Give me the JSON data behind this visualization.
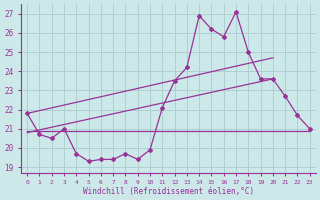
{
  "xlabel": "Windchill (Refroidissement éolien,°C)",
  "xlim": [
    -0.5,
    23.5
  ],
  "ylim": [
    18.7,
    27.5
  ],
  "yticks": [
    19,
    20,
    21,
    22,
    23,
    24,
    25,
    26,
    27
  ],
  "xticks": [
    0,
    1,
    2,
    3,
    4,
    5,
    6,
    7,
    8,
    9,
    10,
    11,
    12,
    13,
    14,
    15,
    16,
    17,
    18,
    19,
    20,
    21,
    22,
    23
  ],
  "background_color": "#cce8e8",
  "grid_color": "#aacccc",
  "line_color": "#993399",
  "data_main": {
    "x": [
      0,
      1,
      2,
      3,
      4,
      5,
      6,
      7,
      8,
      9,
      10,
      11,
      12,
      13,
      14,
      15,
      16,
      17,
      18,
      19,
      20,
      21,
      22,
      23
    ],
    "y": [
      21.8,
      20.7,
      20.5,
      21.0,
      19.7,
      19.3,
      19.4,
      19.4,
      19.7,
      19.4,
      19.9,
      22.1,
      23.5,
      24.2,
      26.9,
      26.2,
      25.8,
      27.1,
      25.0,
      23.6,
      23.6,
      22.7,
      21.7,
      21.0
    ]
  },
  "trend_line1": {
    "x": [
      0,
      20
    ],
    "y": [
      21.8,
      24.7
    ]
  },
  "trend_line2": {
    "x": [
      0,
      20
    ],
    "y": [
      20.8,
      23.6
    ]
  },
  "flat_line": {
    "x": [
      0,
      23
    ],
    "y": [
      20.9,
      20.9
    ]
  }
}
